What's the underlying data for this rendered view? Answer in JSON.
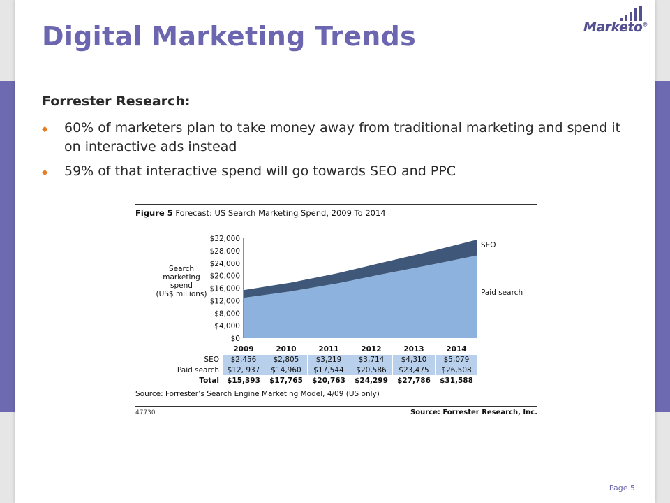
{
  "slide": {
    "title": "Digital Marketing Trends",
    "logo_text": "Marketo",
    "logo_mark": "®",
    "subhead": "Forrester Research:",
    "bullets": [
      "60% of marketers plan to take money away from traditional marketing and spend it on interactive ads instead",
      "59% of that interactive spend will go towards SEO and PPC"
    ],
    "page_label": "Page 5",
    "accent_color": "#6b66af",
    "bullet_color": "#e77e26"
  },
  "figure": {
    "label": "Figure 5",
    "title": "Forecast: US Search Marketing Spend, 2009 To 2014",
    "source_note": "Source: Forrester’s Search Engine Marketing Model, 4/09 (US only)",
    "figure_id": "47730",
    "source_credit": "Source: Forrester Research, Inc.",
    "table": {
      "years": [
        "2009",
        "2010",
        "2011",
        "2012",
        "2013",
        "2014"
      ],
      "rows": [
        {
          "label": "SEO",
          "values": [
            "$2,456",
            "$2,805",
            "$3,219",
            "$3,714",
            "$4,310",
            "$5,079"
          ]
        },
        {
          "label": "Paid search",
          "values": [
            "$12, 937",
            "$14,960",
            "$17,544",
            "$20,586",
            "$23,475",
            "$26,508"
          ]
        }
      ],
      "total": {
        "label": "Total",
        "values": [
          "$15,393",
          "$17,765",
          "$20,763",
          "$24,299",
          "$27,786",
          "$31,588"
        ]
      }
    }
  },
  "chart_data": {
    "type": "area",
    "stacked": true,
    "x": [
      "2009",
      "2010",
      "2011",
      "2012",
      "2013",
      "2014"
    ],
    "series": [
      {
        "name": "Paid search",
        "values": [
          12937,
          14960,
          17544,
          20586,
          23475,
          26508
        ],
        "color": "#8db2dd"
      },
      {
        "name": "SEO",
        "values": [
          2456,
          2805,
          3219,
          3714,
          4310,
          5079
        ],
        "color": "#3f5879"
      }
    ],
    "ylabel": "Search marketing spend (US$ millions)",
    "ylim": [
      0,
      32000
    ],
    "yticks": [
      "$32,000",
      "$28,000",
      "$24,000",
      "$20,000",
      "$16,000",
      "$12,000",
      "$8,000",
      "$4,000",
      "$0"
    ],
    "legend_placement": "right, inline labels",
    "grid": false
  }
}
